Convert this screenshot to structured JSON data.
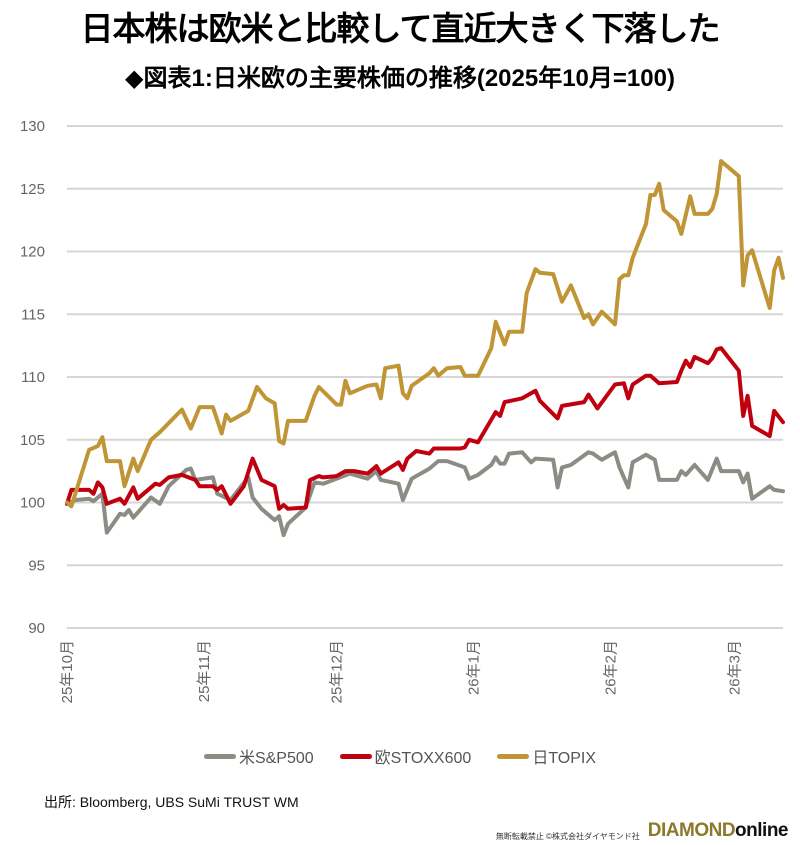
{
  "title": "日本株は欧米と比較して直近大きく下落した",
  "subtitle": "◆図表1:日米欧の主要株価の推移(2025年10月=100)",
  "source": "出所: Bloomberg, UBS SuMi TRUST WM",
  "footer": {
    "copyright": "無断転載禁止 ©株式会社ダイヤモンド社",
    "logo_main": "DIAMOND",
    "logo_sub": "online"
  },
  "chart_data": {
    "type": "line",
    "title": "◆図表1:日米欧の主要株価の推移(2025年10月=100)",
    "xlabel": "",
    "ylabel": "",
    "ylim": [
      90,
      130
    ],
    "yticks": [
      90,
      95,
      100,
      105,
      110,
      115,
      120,
      125,
      130
    ],
    "xlim": [
      "2025-10-01",
      "2026-03-12"
    ],
    "xticks": [
      {
        "date": "2025-10-01",
        "label": "25年10月"
      },
      {
        "date": "2025-11-01",
        "label": "25年11月"
      },
      {
        "date": "2025-12-01",
        "label": "25年12月"
      },
      {
        "date": "2026-01-01",
        "label": "26年1月"
      },
      {
        "date": "2026-02-01",
        "label": "26年2月"
      },
      {
        "date": "2026-03-01",
        "label": "26年3月"
      }
    ],
    "grid": "horizontal",
    "legend_position": "bottom",
    "series": [
      {
        "name": "米S&P500",
        "color": "#8c8c84",
        "points": [
          [
            "2025-10-01",
            99.9
          ],
          [
            "2025-10-03",
            100.2
          ],
          [
            "2025-10-06",
            100.3
          ],
          [
            "2025-10-07",
            100.1
          ],
          [
            "2025-10-09",
            100.7
          ],
          [
            "2025-10-10",
            97.6
          ],
          [
            "2025-10-13",
            99.1
          ],
          [
            "2025-10-14",
            99.0
          ],
          [
            "2025-10-15",
            99.4
          ],
          [
            "2025-10-16",
            98.8
          ],
          [
            "2025-10-20",
            100.4
          ],
          [
            "2025-10-22",
            99.9
          ],
          [
            "2025-10-24",
            101.3
          ],
          [
            "2025-10-28",
            102.6
          ],
          [
            "2025-10-29",
            102.7
          ],
          [
            "2025-10-30",
            101.8
          ],
          [
            "2025-11-03",
            102.0
          ],
          [
            "2025-11-04",
            100.7
          ],
          [
            "2025-11-07",
            100.2
          ],
          [
            "2025-11-11",
            102.0
          ],
          [
            "2025-11-12",
            100.4
          ],
          [
            "2025-11-14",
            99.5
          ],
          [
            "2025-11-17",
            98.6
          ],
          [
            "2025-11-18",
            98.9
          ],
          [
            "2025-11-19",
            97.4
          ],
          [
            "2025-11-20",
            98.3
          ],
          [
            "2025-11-24",
            99.6
          ],
          [
            "2025-11-26",
            101.6
          ],
          [
            "2025-11-28",
            101.5
          ],
          [
            "2025-12-04",
            102.3
          ],
          [
            "2025-12-08",
            101.9
          ],
          [
            "2025-12-10",
            102.5
          ],
          [
            "2025-12-11",
            101.8
          ],
          [
            "2025-12-15",
            101.5
          ],
          [
            "2025-12-16",
            100.2
          ],
          [
            "2025-12-18",
            101.9
          ],
          [
            "2025-12-22",
            102.7
          ],
          [
            "2025-12-24",
            103.3
          ],
          [
            "2025-12-26",
            103.3
          ],
          [
            "2025-12-30",
            102.8
          ],
          [
            "2025-12-31",
            101.9
          ],
          [
            "2026-01-02",
            102.2
          ],
          [
            "2026-01-05",
            103.0
          ],
          [
            "2026-01-06",
            103.6
          ],
          [
            "2026-01-07",
            103.1
          ],
          [
            "2026-01-08",
            103.1
          ],
          [
            "2026-01-09",
            103.9
          ],
          [
            "2026-01-12",
            104.0
          ],
          [
            "2026-01-14",
            103.2
          ],
          [
            "2026-01-15",
            103.5
          ],
          [
            "2026-01-19",
            103.4
          ],
          [
            "2026-01-20",
            101.2
          ],
          [
            "2026-01-21",
            102.8
          ],
          [
            "2026-01-23",
            103.0
          ],
          [
            "2026-01-27",
            104.0
          ],
          [
            "2026-01-28",
            103.9
          ],
          [
            "2026-01-30",
            103.4
          ],
          [
            "2026-02-02",
            104.0
          ],
          [
            "2026-02-03",
            102.8
          ],
          [
            "2026-02-05",
            101.2
          ],
          [
            "2026-02-06",
            103.2
          ],
          [
            "2026-02-09",
            103.8
          ],
          [
            "2026-02-11",
            103.4
          ],
          [
            "2026-02-12",
            101.8
          ],
          [
            "2026-02-16",
            101.8
          ],
          [
            "2026-02-17",
            102.5
          ],
          [
            "2026-02-18",
            102.2
          ],
          [
            "2026-02-20",
            103.0
          ],
          [
            "2026-02-23",
            101.8
          ],
          [
            "2026-02-25",
            103.5
          ],
          [
            "2026-02-26",
            102.5
          ],
          [
            "2026-03-02",
            102.5
          ],
          [
            "2026-03-03",
            101.6
          ],
          [
            "2026-03-04",
            102.3
          ],
          [
            "2026-03-05",
            100.3
          ],
          [
            "2026-03-09",
            101.3
          ],
          [
            "2026-03-10",
            101.0
          ],
          [
            "2026-03-12",
            100.9
          ]
        ]
      },
      {
        "name": "欧STOXX600",
        "color": "#c0000f",
        "points": [
          [
            "2025-10-01",
            99.9
          ],
          [
            "2025-10-02",
            101.0
          ],
          [
            "2025-10-06",
            101.0
          ],
          [
            "2025-10-07",
            100.7
          ],
          [
            "2025-10-08",
            101.6
          ],
          [
            "2025-10-09",
            101.2
          ],
          [
            "2025-10-10",
            99.9
          ],
          [
            "2025-10-13",
            100.3
          ],
          [
            "2025-10-14",
            99.9
          ],
          [
            "2025-10-16",
            101.2
          ],
          [
            "2025-10-17",
            100.3
          ],
          [
            "2025-10-21",
            101.5
          ],
          [
            "2025-10-22",
            101.4
          ],
          [
            "2025-10-24",
            102.0
          ],
          [
            "2025-10-27",
            102.2
          ],
          [
            "2025-10-30",
            101.8
          ],
          [
            "2025-10-31",
            101.3
          ],
          [
            "2025-11-03",
            101.3
          ],
          [
            "2025-11-04",
            101.0
          ],
          [
            "2025-11-05",
            101.3
          ],
          [
            "2025-11-07",
            99.9
          ],
          [
            "2025-11-10",
            101.3
          ],
          [
            "2025-11-12",
            103.5
          ],
          [
            "2025-11-14",
            101.8
          ],
          [
            "2025-11-17",
            101.3
          ],
          [
            "2025-11-18",
            99.5
          ],
          [
            "2025-11-19",
            99.8
          ],
          [
            "2025-11-20",
            99.5
          ],
          [
            "2025-11-24",
            99.6
          ],
          [
            "2025-11-25",
            101.8
          ],
          [
            "2025-11-27",
            102.1
          ],
          [
            "2025-11-28",
            102.0
          ],
          [
            "2025-12-01",
            102.1
          ],
          [
            "2025-12-03",
            102.5
          ],
          [
            "2025-12-05",
            102.5
          ],
          [
            "2025-12-08",
            102.3
          ],
          [
            "2025-12-10",
            102.9
          ],
          [
            "2025-12-11",
            102.3
          ],
          [
            "2025-12-15",
            103.2
          ],
          [
            "2025-12-16",
            102.6
          ],
          [
            "2025-12-17",
            103.5
          ],
          [
            "2025-12-19",
            104.1
          ],
          [
            "2025-12-22",
            103.9
          ],
          [
            "2025-12-23",
            104.3
          ],
          [
            "2025-12-29",
            104.3
          ],
          [
            "2025-12-30",
            104.4
          ],
          [
            "2025-12-31",
            105.0
          ],
          [
            "2026-01-02",
            104.8
          ],
          [
            "2026-01-06",
            107.2
          ],
          [
            "2026-01-07",
            106.9
          ],
          [
            "2026-01-08",
            108.0
          ],
          [
            "2026-01-12",
            108.3
          ],
          [
            "2026-01-15",
            108.9
          ],
          [
            "2026-01-16",
            108.1
          ],
          [
            "2026-01-20",
            106.7
          ],
          [
            "2026-01-21",
            107.7
          ],
          [
            "2026-01-26",
            108.0
          ],
          [
            "2026-01-27",
            108.6
          ],
          [
            "2026-01-29",
            107.5
          ],
          [
            "2026-02-02",
            109.4
          ],
          [
            "2026-02-04",
            109.5
          ],
          [
            "2026-02-05",
            108.3
          ],
          [
            "2026-02-06",
            109.4
          ],
          [
            "2026-02-09",
            110.1
          ],
          [
            "2026-02-10",
            110.1
          ],
          [
            "2026-02-12",
            109.5
          ],
          [
            "2026-02-16",
            109.6
          ],
          [
            "2026-02-17",
            110.5
          ],
          [
            "2026-02-18",
            111.3
          ],
          [
            "2026-02-19",
            110.8
          ],
          [
            "2026-02-20",
            111.6
          ],
          [
            "2026-02-23",
            111.1
          ],
          [
            "2026-02-24",
            111.5
          ],
          [
            "2026-02-25",
            112.2
          ],
          [
            "2026-02-26",
            112.3
          ],
          [
            "2026-03-02",
            110.5
          ],
          [
            "2026-03-03",
            106.9
          ],
          [
            "2026-03-04",
            108.5
          ],
          [
            "2026-03-05",
            106.1
          ],
          [
            "2026-03-09",
            105.3
          ],
          [
            "2026-03-10",
            107.3
          ],
          [
            "2026-03-12",
            106.4
          ]
        ]
      },
      {
        "name": "日TOPIX",
        "color": "#c09536",
        "points": [
          [
            "2025-10-01",
            100.0
          ],
          [
            "2025-10-02",
            99.7
          ],
          [
            "2025-10-06",
            104.2
          ],
          [
            "2025-10-08",
            104.5
          ],
          [
            "2025-10-09",
            105.2
          ],
          [
            "2025-10-10",
            103.3
          ],
          [
            "2025-10-13",
            103.3
          ],
          [
            "2025-10-14",
            101.3
          ],
          [
            "2025-10-16",
            103.5
          ],
          [
            "2025-10-17",
            102.5
          ],
          [
            "2025-10-20",
            105.0
          ],
          [
            "2025-10-22",
            105.6
          ],
          [
            "2025-10-27",
            107.4
          ],
          [
            "2025-10-29",
            105.9
          ],
          [
            "2025-10-31",
            107.6
          ],
          [
            "2025-11-03",
            107.6
          ],
          [
            "2025-11-05",
            105.5
          ],
          [
            "2025-11-06",
            107.0
          ],
          [
            "2025-11-07",
            106.5
          ],
          [
            "2025-11-11",
            107.3
          ],
          [
            "2025-11-13",
            109.2
          ],
          [
            "2025-11-15",
            108.3
          ],
          [
            "2025-11-17",
            107.9
          ],
          [
            "2025-11-18",
            104.9
          ],
          [
            "2025-11-19",
            104.7
          ],
          [
            "2025-11-20",
            106.5
          ],
          [
            "2025-11-24",
            106.5
          ],
          [
            "2025-11-26",
            108.5
          ],
          [
            "2025-11-27",
            109.2
          ],
          [
            "2025-12-01",
            107.8
          ],
          [
            "2025-12-02",
            107.8
          ],
          [
            "2025-12-03",
            109.7
          ],
          [
            "2025-12-04",
            108.7
          ],
          [
            "2025-12-08",
            109.3
          ],
          [
            "2025-12-10",
            109.4
          ],
          [
            "2025-12-11",
            108.3
          ],
          [
            "2025-12-12",
            110.7
          ],
          [
            "2025-12-15",
            110.9
          ],
          [
            "2025-12-16",
            108.7
          ],
          [
            "2025-12-17",
            108.3
          ],
          [
            "2025-12-18",
            109.3
          ],
          [
            "2025-12-22",
            110.3
          ],
          [
            "2025-12-23",
            110.7
          ],
          [
            "2025-12-24",
            110.1
          ],
          [
            "2025-12-26",
            110.7
          ],
          [
            "2025-12-29",
            110.8
          ],
          [
            "2025-12-30",
            110.1
          ],
          [
            "2026-01-02",
            110.1
          ],
          [
            "2026-01-05",
            112.3
          ],
          [
            "2026-01-06",
            114.4
          ],
          [
            "2026-01-08",
            112.6
          ],
          [
            "2026-01-09",
            113.6
          ],
          [
            "2026-01-12",
            113.6
          ],
          [
            "2026-01-13",
            116.7
          ],
          [
            "2026-01-15",
            118.6
          ],
          [
            "2026-01-16",
            118.3
          ],
          [
            "2026-01-19",
            118.2
          ],
          [
            "2026-01-21",
            116.0
          ],
          [
            "2026-01-23",
            117.3
          ],
          [
            "2026-01-26",
            114.7
          ],
          [
            "2026-01-27",
            115.0
          ],
          [
            "2026-01-28",
            114.2
          ],
          [
            "2026-01-30",
            115.2
          ],
          [
            "2026-02-02",
            114.2
          ],
          [
            "2026-02-03",
            117.8
          ],
          [
            "2026-02-04",
            118.1
          ],
          [
            "2026-02-05",
            118.1
          ],
          [
            "2026-02-06",
            119.5
          ],
          [
            "2026-02-09",
            122.2
          ],
          [
            "2026-02-10",
            124.5
          ],
          [
            "2026-02-11",
            124.5
          ],
          [
            "2026-02-12",
            125.4
          ],
          [
            "2026-02-13",
            123.3
          ],
          [
            "2026-02-16",
            122.4
          ],
          [
            "2026-02-17",
            121.4
          ],
          [
            "2026-02-19",
            124.4
          ],
          [
            "2026-02-20",
            123.0
          ],
          [
            "2026-02-23",
            123.0
          ],
          [
            "2026-02-24",
            123.4
          ],
          [
            "2026-02-25",
            124.6
          ],
          [
            "2026-02-26",
            127.2
          ],
          [
            "2026-03-02",
            126.0
          ],
          [
            "2026-03-03",
            117.3
          ],
          [
            "2026-03-04",
            119.7
          ],
          [
            "2026-03-05",
            120.1
          ],
          [
            "2026-03-09",
            115.5
          ],
          [
            "2026-03-10",
            118.5
          ],
          [
            "2026-03-11",
            119.5
          ],
          [
            "2026-03-12",
            117.9
          ]
        ]
      }
    ]
  }
}
